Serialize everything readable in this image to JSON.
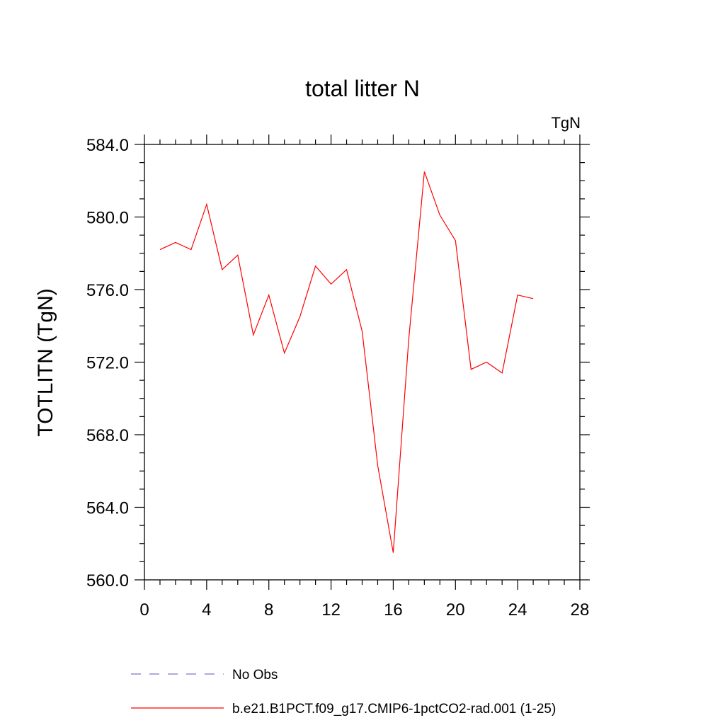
{
  "chart_data": {
    "type": "line",
    "title": "total litter N",
    "units": "TgN",
    "ylabel": "TOTLITN  (TgN)",
    "xlim": [
      0,
      28
    ],
    "ylim": [
      560,
      584
    ],
    "x_ticks": [
      0,
      4,
      8,
      12,
      16,
      20,
      24,
      28
    ],
    "x_tick_labels": [
      "0",
      "4",
      "8",
      "12",
      "16",
      "20",
      "24",
      "28"
    ],
    "y_ticks": [
      560,
      564,
      568,
      572,
      576,
      580,
      584
    ],
    "y_tick_labels": [
      "560.0",
      "564.0",
      "568.0",
      "572.0",
      "576.0",
      "580.0",
      "584.0"
    ],
    "grid": false,
    "legend_position": "bottom",
    "series": [
      {
        "name": "No Obs",
        "style": "dashed",
        "color": "#7a78c8",
        "x": [],
        "y": []
      },
      {
        "name": "b.e21.B1PCT.f09_g17.CMIP6-1pctCO2-rad.001 (1-25)",
        "style": "solid",
        "color": "#ff0000",
        "x": [
          1,
          2,
          3,
          4,
          5,
          6,
          7,
          8,
          9,
          10,
          11,
          12,
          13,
          14,
          15,
          16,
          17,
          18,
          19,
          20,
          21,
          22,
          23,
          24,
          25
        ],
        "y": [
          578.2,
          578.6,
          578.2,
          580.7,
          577.1,
          577.9,
          573.5,
          575.7,
          572.5,
          574.5,
          577.3,
          576.3,
          577.1,
          573.7,
          566.3,
          561.5,
          573.3,
          582.5,
          580.1,
          578.7,
          571.6,
          572.0,
          571.4,
          575.7,
          575.5
        ]
      }
    ]
  }
}
